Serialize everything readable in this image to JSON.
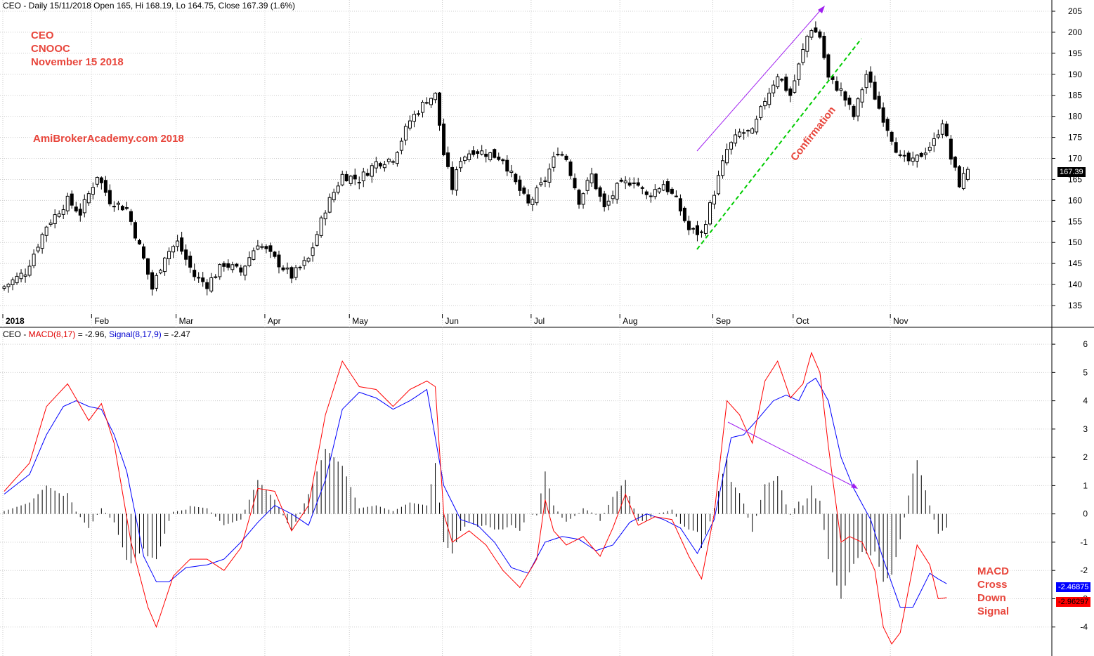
{
  "header": {
    "price": "CEO - Daily 15/11/2018 Open 165, Hi 168.19, Lo 164.75, Close 167.39 (1.6%)",
    "macd_prefix": "CEO - ",
    "macd_name": "MACD(8,17)",
    "macd_value": " = -2.96, ",
    "signal_name": "Signal(8,17,9)",
    "signal_value": " = -2.47"
  },
  "annotations": {
    "top_left": [
      "CEO",
      "CNOOC",
      "November 15 2018"
    ],
    "watermark": "AmiBrokerAcademy.com  2018",
    "confirmation": "Confirmation",
    "macd_note": [
      "MACD",
      "Cross",
      "Down",
      "Signal"
    ]
  },
  "tags": {
    "close": "167.39",
    "signal": "-2.46875",
    "macd": "-2.96297"
  },
  "colors": {
    "macd": "#ff0000",
    "signal": "#0000ff",
    "histogram": "#000000",
    "annotation": "#e8463c",
    "trend_arrow": "#a020f0",
    "confirmation_line": "#00cc00",
    "grid": "#cccccc"
  },
  "chart_data": [
    {
      "type": "candlestick",
      "ylim": [
        133,
        206
      ],
      "yticks": [
        135,
        140,
        145,
        150,
        155,
        160,
        165,
        170,
        175,
        180,
        185,
        190,
        195,
        200,
        205
      ],
      "months": [
        "2018",
        "Feb",
        "Mar",
        "Apr",
        "May",
        "Jun",
        "Jul",
        "Aug",
        "Sep",
        "Oct",
        "Nov"
      ],
      "month_start_index": [
        0,
        21,
        41,
        62,
        82,
        104,
        125,
        146,
        168,
        187,
        210
      ],
      "last_close": 167.39,
      "anchors": [
        [
          0,
          139.5
        ],
        [
          5,
          143
        ],
        [
          10,
          154
        ],
        [
          15,
          160
        ],
        [
          18,
          157
        ],
        [
          22,
          166
        ],
        [
          25,
          160
        ],
        [
          29,
          158
        ],
        [
          33,
          146
        ],
        [
          35,
          139
        ],
        [
          38,
          147
        ],
        [
          41,
          150
        ],
        [
          45,
          142
        ],
        [
          48,
          140
        ],
        [
          52,
          145
        ],
        [
          56,
          143
        ],
        [
          60,
          150
        ],
        [
          64,
          146
        ],
        [
          68,
          142
        ],
        [
          72,
          146
        ],
        [
          76,
          158
        ],
        [
          80,
          166
        ],
        [
          84,
          165
        ],
        [
          88,
          169
        ],
        [
          92,
          170
        ],
        [
          96,
          179
        ],
        [
          100,
          184
        ],
        [
          102,
          185
        ],
        [
          104,
          171
        ],
        [
          106,
          163
        ],
        [
          108,
          170
        ],
        [
          111,
          172
        ],
        [
          115,
          171
        ],
        [
          118,
          170
        ],
        [
          121,
          164
        ],
        [
          124,
          159
        ],
        [
          128,
          165
        ],
        [
          131,
          172
        ],
        [
          133,
          170
        ],
        [
          136,
          160
        ],
        [
          139,
          166
        ],
        [
          142,
          158
        ],
        [
          145,
          163
        ],
        [
          149,
          165
        ],
        [
          152,
          161
        ],
        [
          156,
          164
        ],
        [
          159,
          160
        ],
        [
          162,
          153
        ],
        [
          165,
          152
        ],
        [
          168,
          162
        ],
        [
          171,
          172
        ],
        [
          174,
          176
        ],
        [
          177,
          176
        ],
        [
          180,
          184
        ],
        [
          183,
          190
        ],
        [
          186,
          185
        ],
        [
          188,
          192
        ],
        [
          190,
          199
        ],
        [
          191,
          201
        ],
        [
          193,
          199
        ],
        [
          195,
          189
        ],
        [
          198,
          186
        ],
        [
          201,
          180
        ],
        [
          204,
          190
        ],
        [
          207,
          182
        ],
        [
          210,
          175
        ],
        [
          212,
          170
        ],
        [
          215,
          169
        ],
        [
          218,
          172
        ],
        [
          220,
          174
        ],
        [
          222,
          179
        ],
        [
          224,
          170
        ],
        [
          226,
          164
        ],
        [
          228,
          167.39
        ]
      ]
    },
    {
      "type": "line",
      "ylim": [
        -5,
        6.3
      ],
      "yticks": [
        -4,
        -3,
        -2,
        -1,
        0,
        1,
        2,
        3,
        4,
        5,
        6
      ],
      "series": [
        {
          "name": "MACD(8,17)",
          "anchors": [
            [
              0,
              0.8
            ],
            [
              6,
              1.8
            ],
            [
              10,
              3.8
            ],
            [
              15,
              4.6
            ],
            [
              20,
              3.3
            ],
            [
              23,
              3.9
            ],
            [
              26,
              2.5
            ],
            [
              30,
              -1.0
            ],
            [
              34,
              -3.3
            ],
            [
              36,
              -4.0
            ],
            [
              40,
              -2.2
            ],
            [
              44,
              -1.6
            ],
            [
              48,
              -1.6
            ],
            [
              52,
              -2.0
            ],
            [
              56,
              -1.2
            ],
            [
              60,
              0.9
            ],
            [
              64,
              0.8
            ],
            [
              68,
              -0.6
            ],
            [
              72,
              0.3
            ],
            [
              76,
              3.5
            ],
            [
              80,
              5.4
            ],
            [
              84,
              4.5
            ],
            [
              88,
              4.4
            ],
            [
              92,
              3.8
            ],
            [
              96,
              4.4
            ],
            [
              100,
              4.7
            ],
            [
              102,
              4.5
            ],
            [
              104,
              0.0
            ],
            [
              106,
              -1.0
            ],
            [
              110,
              -0.6
            ],
            [
              114,
              -1.1
            ],
            [
              118,
              -2.0
            ],
            [
              122,
              -2.6
            ],
            [
              126,
              -1.6
            ],
            [
              128,
              0.5
            ],
            [
              130,
              -0.6
            ],
            [
              133,
              -1.1
            ],
            [
              137,
              -0.8
            ],
            [
              141,
              -1.5
            ],
            [
              144,
              -0.5
            ],
            [
              147,
              0.7
            ],
            [
              150,
              -0.4
            ],
            [
              154,
              -0.1
            ],
            [
              158,
              -0.2
            ],
            [
              162,
              -1.5
            ],
            [
              165,
              -2.3
            ],
            [
              168,
              0.0
            ],
            [
              171,
              4.0
            ],
            [
              174,
              3.5
            ],
            [
              177,
              2.5
            ],
            [
              180,
              4.7
            ],
            [
              183,
              5.4
            ],
            [
              186,
              4.1
            ],
            [
              189,
              4.6
            ],
            [
              191,
              5.7
            ],
            [
              193,
              5.0
            ],
            [
              195,
              2.4
            ],
            [
              198,
              -1.0
            ],
            [
              200,
              -0.8
            ],
            [
              203,
              -1.0
            ],
            [
              206,
              -2.0
            ],
            [
              208,
              -4.0
            ],
            [
              210,
              -4.6
            ],
            [
              212,
              -4.2
            ],
            [
              216,
              -1.1
            ],
            [
              219,
              -1.8
            ],
            [
              221,
              -3.0
            ],
            [
              223,
              -2.96
            ]
          ]
        },
        {
          "name": "Signal(8,17,9)",
          "anchors": [
            [
              0,
              0.7
            ],
            [
              6,
              1.4
            ],
            [
              10,
              2.8
            ],
            [
              14,
              3.8
            ],
            [
              17,
              4.0
            ],
            [
              20,
              3.8
            ],
            [
              23,
              3.7
            ],
            [
              26,
              2.8
            ],
            [
              29,
              1.5
            ],
            [
              33,
              -1.5
            ],
            [
              36,
              -2.4
            ],
            [
              39,
              -2.4
            ],
            [
              43,
              -1.9
            ],
            [
              48,
              -1.8
            ],
            [
              52,
              -1.6
            ],
            [
              56,
              -1.0
            ],
            [
              60,
              -0.3
            ],
            [
              64,
              0.3
            ],
            [
              68,
              0.0
            ],
            [
              72,
              -0.4
            ],
            [
              76,
              1.2
            ],
            [
              80,
              3.7
            ],
            [
              84,
              4.3
            ],
            [
              88,
              4.1
            ],
            [
              92,
              3.7
            ],
            [
              96,
              4.0
            ],
            [
              100,
              4.4
            ],
            [
              104,
              1.0
            ],
            [
              108,
              -0.2
            ],
            [
              112,
              -0.4
            ],
            [
              116,
              -1.0
            ],
            [
              120,
              -1.9
            ],
            [
              124,
              -2.1
            ],
            [
              128,
              -1.0
            ],
            [
              132,
              -0.8
            ],
            [
              136,
              -0.9
            ],
            [
              140,
              -1.3
            ],
            [
              144,
              -1.1
            ],
            [
              148,
              -0.3
            ],
            [
              152,
              0.0
            ],
            [
              156,
              -0.2
            ],
            [
              160,
              -0.5
            ],
            [
              164,
              -1.4
            ],
            [
              168,
              -0.2
            ],
            [
              172,
              2.7
            ],
            [
              175,
              2.8
            ],
            [
              178,
              3.3
            ],
            [
              182,
              4.0
            ],
            [
              185,
              4.2
            ],
            [
              188,
              4.0
            ],
            [
              190,
              4.6
            ],
            [
              192,
              4.8
            ],
            [
              195,
              4.0
            ],
            [
              198,
              2.0
            ],
            [
              201,
              0.9
            ],
            [
              205,
              -0.2
            ],
            [
              208,
              -1.6
            ],
            [
              212,
              -3.3
            ],
            [
              215,
              -3.3
            ],
            [
              219,
              -2.1
            ],
            [
              221,
              -2.3
            ],
            [
              223,
              -2.47
            ]
          ]
        }
      ]
    }
  ]
}
